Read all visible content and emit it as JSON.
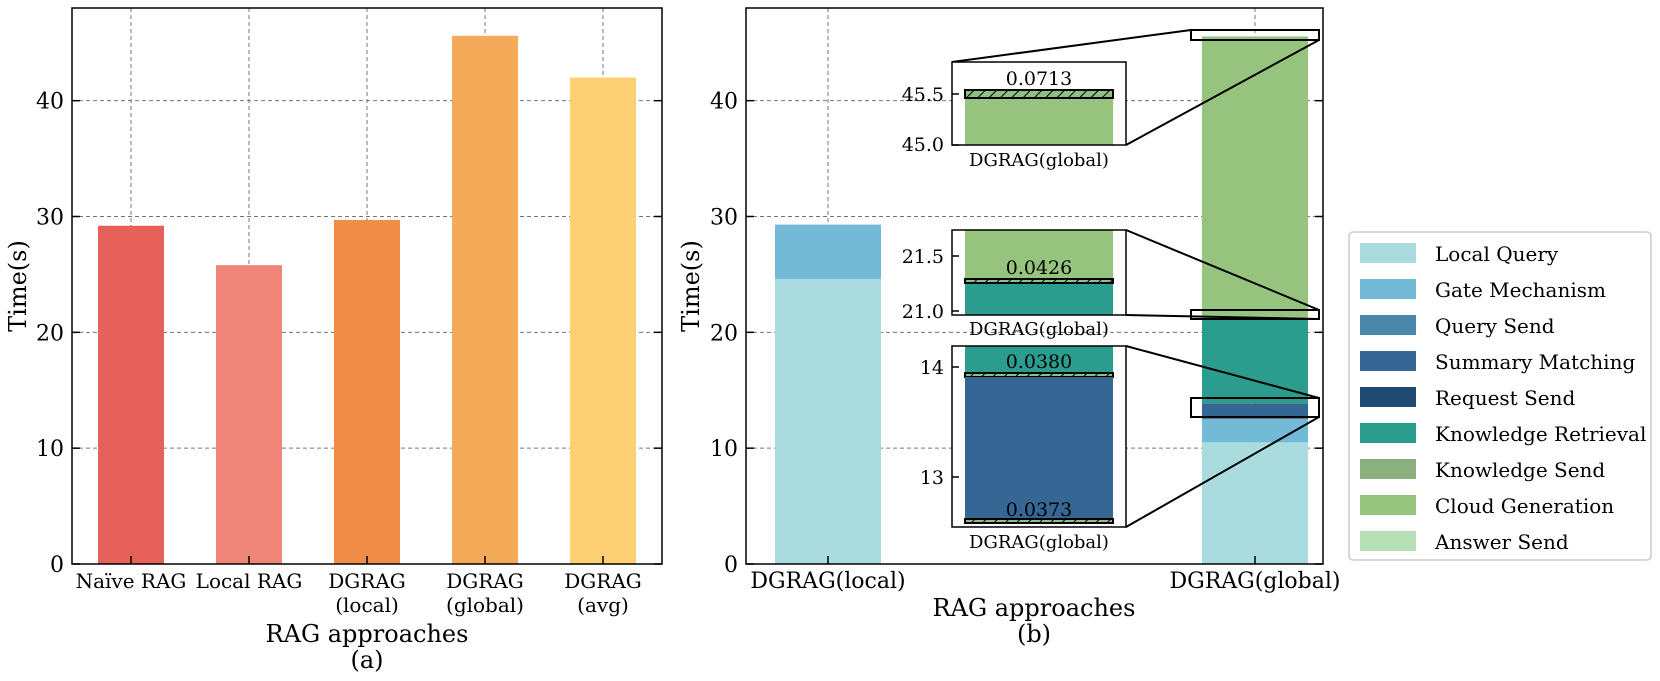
{
  "chart_data": [
    {
      "type": "bar",
      "panel": "(a)",
      "categories": [
        "Naïve RAG",
        "Local RAG",
        "DGRAG\n(local)",
        "DGRAG\n(global)",
        "DGRAG\n(avg)"
      ],
      "values": [
        29.2,
        25.8,
        29.7,
        45.6,
        42.0
      ],
      "colors": [
        "#e6615a",
        "#ef8579",
        "#ef8c46",
        "#f5aa59",
        "#fdd074"
      ],
      "xlabel": "RAG approaches",
      "ylabel": "Time(s)",
      "caption": "(a)",
      "ylim": [
        0,
        48
      ],
      "yticks": [
        0,
        10,
        20,
        30,
        40
      ],
      "grid": true
    },
    {
      "type": "stacked-bar",
      "panel": "(b)",
      "categories": [
        "DGRAG(local)",
        "DGRAG(global)"
      ],
      "series": [
        {
          "name": "Local Query",
          "color": "#aadcdf",
          "values": [
            24.6,
            10.5
          ]
        },
        {
          "name": "Gate Mechanism",
          "color": "#73bad6",
          "values": [
            4.7,
            2.0
          ]
        },
        {
          "name": "Query Send",
          "color": "#4a86aa",
          "values": [
            0,
            0.0373
          ]
        },
        {
          "name": "Summary Matching",
          "color": "#356694",
          "values": [
            0,
            1.3
          ]
        },
        {
          "name": "Request Send",
          "color": "#1f4a72",
          "values": [
            0,
            0.038
          ]
        },
        {
          "name": "Knowledge Retrieval",
          "color": "#2a9d8e",
          "values": [
            0,
            7.3
          ]
        },
        {
          "name": "Knowledge Send",
          "color": "#8ab17d",
          "values": [
            0,
            0.0426
          ]
        },
        {
          "name": "Cloud Generation",
          "color": "#96c47e",
          "values": [
            0,
            24.3
          ]
        },
        {
          "name": "Answer Send",
          "color": "#b7e0b7",
          "values": [
            0,
            0.0713
          ]
        }
      ],
      "xlabel": "RAG approaches",
      "ylabel": "Time(s)",
      "caption": "(b)",
      "ylim": [
        0,
        48
      ],
      "yticks": [
        0,
        10,
        20,
        30,
        40
      ],
      "grid": true,
      "insets": [
        {
          "xlabel": "DGRAG(global)",
          "ylim": [
            45.0,
            45.75
          ],
          "yticks": [
            "45.0",
            "45.5"
          ],
          "annotations": [
            "0.0713"
          ]
        },
        {
          "xlabel": "DGRAG(global)",
          "ylim": [
            20.9,
            21.7
          ],
          "yticks": [
            "21.0",
            "21.5"
          ],
          "annotations": [
            "0.0426"
          ]
        },
        {
          "xlabel": "DGRAG(global)",
          "ylim": [
            12.55,
            14.25
          ],
          "yticks": [
            "13",
            "14"
          ],
          "annotations": [
            "0.0380",
            "0.0373"
          ]
        }
      ]
    }
  ],
  "legend": [
    "Local Query",
    "Gate Mechanism",
    "Query Send",
    "Summary Matching",
    "Request Send",
    "Knowledge Retrieval",
    "Knowledge Send",
    "Cloud Generation",
    "Answer Send"
  ]
}
